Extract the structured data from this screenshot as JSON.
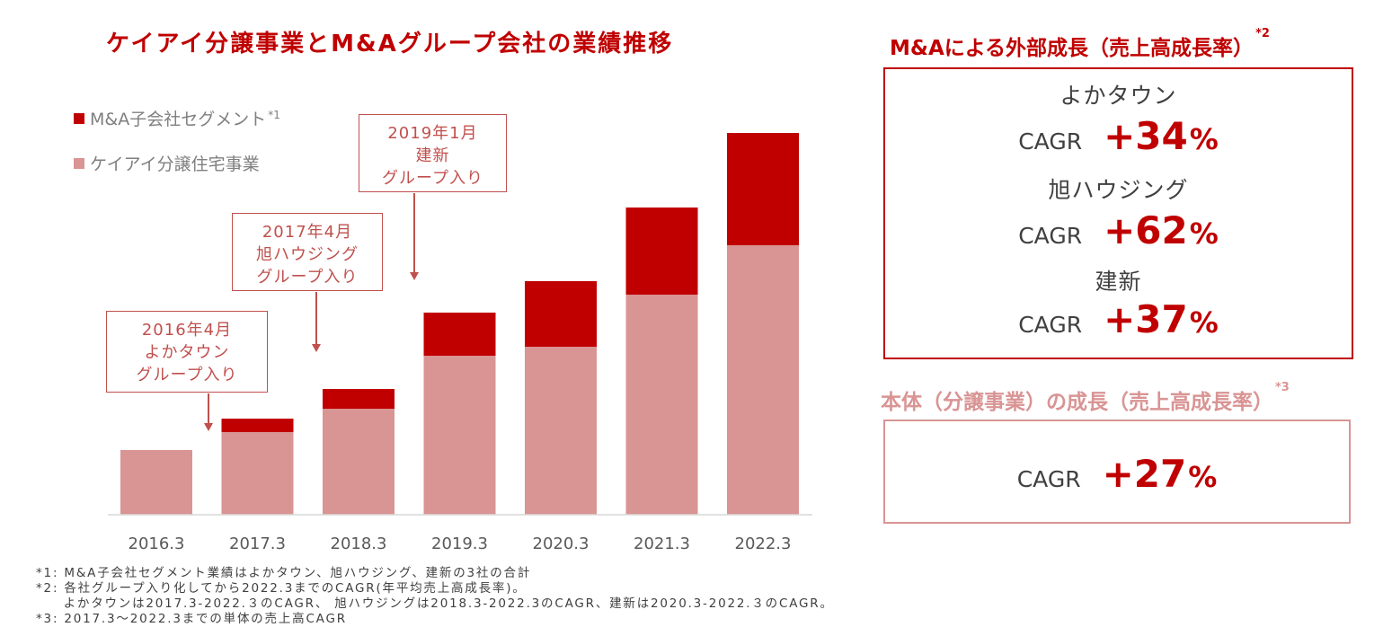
{
  "colors": {
    "ma_segment": "#c00000",
    "core_business": "#d99494",
    "accent": "#c00000",
    "callout_border": "#c0504d",
    "core_panel_border": "#d99494"
  },
  "chart_data": {
    "type": "bar",
    "stacked": true,
    "title": "ケイアイ分譲事業とM&Aグループ会社の業績推移",
    "categories": [
      "2016.3",
      "2017.3",
      "2018.3",
      "2019.3",
      "2020.3",
      "2021.3",
      "2022.3"
    ],
    "series": [
      {
        "name": "ケイアイ分譲住宅事業",
        "color": "#d99494",
        "values": [
          72,
          92,
          118,
          177,
          187,
          245,
          300
        ]
      },
      {
        "name": "M&A子会社セグメント",
        "marker": "*1",
        "color": "#c00000",
        "values": [
          0,
          15,
          22,
          48,
          73,
          97,
          125
        ]
      }
    ],
    "ylim": [
      0,
      440
    ],
    "xlabel": "",
    "ylabel": "",
    "grid": false,
    "legend": [
      {
        "label": "M&A子会社セグメント",
        "sup": "*1",
        "color": "#c00000"
      },
      {
        "label": "ケイアイ分譲住宅事業",
        "sup": "",
        "color": "#d99494"
      }
    ],
    "annotations": [
      {
        "lines": [
          "2016年4月",
          "よかタウン",
          "グループ入り"
        ],
        "target": "2017.3"
      },
      {
        "lines": [
          "2017年4月",
          "旭ハウジング",
          "グループ入り"
        ],
        "target": "2018.3"
      },
      {
        "lines": [
          "2019年1月",
          "建新",
          "グループ入り"
        ],
        "target": "2019.3"
      }
    ]
  },
  "ma_panel": {
    "title": "M&Aによる外部成長（売上高成長率）",
    "title_sup": "*2",
    "entries": [
      {
        "company": "よかタウン",
        "label": "CAGR",
        "value": "+34",
        "unit": "%"
      },
      {
        "company": "旭ハウジング",
        "label": "CAGR",
        "value": "+62",
        "unit": "%"
      },
      {
        "company": "建新",
        "label": "CAGR",
        "value": "+37",
        "unit": "%"
      }
    ]
  },
  "core_panel": {
    "title": "本体（分譲事業）の成長（売上高成長率）",
    "title_sup": "*3",
    "label": "CAGR",
    "value": "+27",
    "unit": "%"
  },
  "footnotes": [
    "*1: M&A子会社セグメント業績はよかタウン、旭ハウジング、建新の3社の合計",
    "*2: 各社グループ入り化してから2022.3までのCAGR(年平均売上高成長率)。",
    "　　よかタウンは2017.3-2022.３のCAGR、 旭ハウジングは2018.3-2022.3のCAGR、建新は2020.3-2022.３のCAGR。",
    "*3: 2017.3～2022.3までの単体の売上高CAGR"
  ]
}
